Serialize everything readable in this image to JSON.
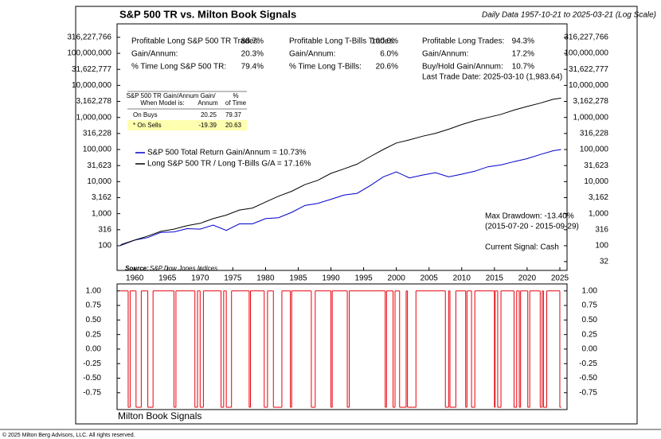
{
  "chart_data": [
    {
      "type": "line",
      "log": true,
      "title": "S&P 500 TR vs. Milton Book Signals",
      "subtitle": "Daily Data 1957-10-21 to 2025-03-21 (Log Scale)",
      "x": [
        1957.8,
        1958,
        1960,
        1962,
        1964,
        1966,
        1968,
        1970,
        1972,
        1974,
        1976,
        1978,
        1980,
        1982,
        1984,
        1986,
        1988,
        1990,
        1992,
        1994,
        1996,
        1998,
        2000,
        2002,
        2004,
        2006,
        2008,
        2010,
        2012,
        2014,
        2016,
        2018,
        2020,
        2022,
        2024,
        2025.2
      ],
      "xlim": [
        1957.3,
        2026.1
      ],
      "xticks": [
        1960,
        1965,
        1970,
        1975,
        1980,
        1985,
        1990,
        1995,
        2000,
        2005,
        2010,
        2015,
        2020,
        2025
      ],
      "ylim": [
        17,
        830000000
      ],
      "yticks": [
        100,
        316,
        {
          "value": 1000,
          "label": "1,000"
        },
        {
          "value": 3162,
          "label": "3,162"
        },
        {
          "value": 10000,
          "label": "10,000"
        },
        {
          "value": 31623,
          "label": "31,623"
        },
        {
          "value": 100000,
          "label": "100,000"
        },
        {
          "value": 316228,
          "label": "316,228"
        },
        {
          "value": 1000000,
          "label": "1,000,000"
        },
        {
          "value": 3162278,
          "label": "3,162,278"
        },
        {
          "value": 10000000,
          "label": "10,000,000"
        },
        {
          "value": 31622777,
          "label": "31,622,777"
        },
        {
          "value": 100000000,
          "label": "100,000,000"
        },
        {
          "value": 316227766,
          "label": "316,227,766"
        }
      ],
      "y2lim": [
        17,
        830000000
      ],
      "y2ticks": [
        32,
        100,
        316,
        {
          "value": 1000,
          "label": "1,000"
        },
        {
          "value": 3162,
          "label": "3,162"
        },
        {
          "value": 10000,
          "label": "10,000"
        },
        {
          "value": 31623,
          "label": "31,623"
        },
        {
          "value": 100000,
          "label": "100,000"
        },
        {
          "value": 316228,
          "label": "316,228"
        },
        {
          "value": 1000000,
          "label": "1,000,000"
        },
        {
          "value": 3162278,
          "label": "3,162,278"
        },
        {
          "value": 10000000,
          "label": "10,000,000"
        },
        {
          "value": 31622777,
          "label": "31,622,777"
        },
        {
          "value": 100000000,
          "label": "100,000,000"
        },
        {
          "value": 316227766,
          "label": "316,227,766"
        }
      ],
      "series": [
        {
          "name": "S&P 500 Total Return Gain/Annum = 10.73%",
          "color": "#0000cc",
          "values": [
            100,
            105,
            150,
            180,
            260,
            270,
            340,
            330,
            440,
            300,
            480,
            480,
            700,
            750,
            1100,
            1800,
            2100,
            2800,
            3800,
            4300,
            7500,
            14000,
            20000,
            13000,
            16000,
            19000,
            14000,
            17000,
            21000,
            29000,
            33000,
            42000,
            52000,
            70000,
            92000,
            100000
          ]
        },
        {
          "name": "Long S&P 500 TR / Long T-Bills  G/A = 17.16%",
          "color": "#000000",
          "values": [
            100,
            110,
            150,
            200,
            280,
            330,
            420,
            500,
            700,
            900,
            1300,
            1500,
            2300,
            3500,
            5000,
            8000,
            11000,
            18000,
            25000,
            35000,
            60000,
            100000,
            160000,
            200000,
            260000,
            320000,
            430000,
            600000,
            800000,
            1000000,
            1250000,
            1700000,
            2200000,
            2800000,
            3700000,
            4000000
          ]
        }
      ],
      "legend": "upper left",
      "stats": [
        [
          [
            "Profitable Long S&P 500 TR Trades:",
            "88.7%"
          ],
          [
            "Gain/Annum:",
            "20.3%"
          ],
          [
            "% Time Long S&P 500 TR:",
            "79.4%"
          ]
        ],
        [
          [
            "Profitable Long T-Bills Trades:",
            "100.0%"
          ],
          [
            "Gain/Annum:",
            "6.0%"
          ],
          [
            "% Time Long T-Bills:",
            "20.6%"
          ]
        ],
        [
          [
            "Profitable Long Trades:",
            "94.3%"
          ],
          [
            "Gain/Annum:",
            "17.2%"
          ],
          [
            "Buy/Hold Gain/Annum:",
            "10.7%"
          ]
        ]
      ],
      "last_trade": "Last Trade Date: 2025-03-10 (1,983.64)",
      "table": {
        "header": [
          [
            "S&P 500 TR Gain/Annum",
            "When Model is:"
          ],
          [
            "Gain/",
            "Annum"
          ],
          [
            "%",
            "of Time"
          ]
        ],
        "rows": [
          [
            "On Buys",
            "20.25",
            "79.37"
          ],
          [
            "* On Sells",
            "-19.39",
            "20.63"
          ]
        ]
      },
      "annotations": [
        "Max Drawdown: -13.40%",
        "(2015-07-20 - 2015-09-29)",
        "Current Signal: Cash"
      ],
      "source_label": "Source:",
      "source": "S&P Dow Jones Indices"
    },
    {
      "type": "step",
      "title": "Milton Book Signals",
      "color": "#e8000b",
      "x": [
        1957.8,
        1959.0,
        1959.3,
        1960.2,
        1961.0,
        1962.0,
        1962.8,
        1966.0,
        1966.3,
        1969.2,
        1969.6,
        1970.0,
        1970.5,
        1973.2,
        1973.6,
        1974.0,
        1974.8,
        1977.5,
        1977.7,
        1979.8,
        1980.3,
        1981.2,
        1982.5,
        1983.8,
        1984.0,
        1987.0,
        1987.6,
        1990.0,
        1990.2,
        1992.5,
        1992.8,
        1998.3,
        1998.5,
        1999.5,
        1999.8,
        2000.5,
        2001.5,
        2001.7,
        2003.0,
        2007.5,
        2008.0,
        2008.2,
        2009.1,
        2010.6,
        2010.8,
        2011.5,
        2012.0,
        2015.0,
        2015.1,
        2015.5,
        2016.0,
        2018.0,
        2018.4,
        2018.8,
        2019.0,
        2020.1,
        2020.4,
        2022.0,
        2022.3,
        2022.5,
        2023.0,
        2025.0
      ],
      "values": [
        1,
        -1,
        1,
        -1,
        1,
        -1,
        1,
        -1,
        1,
        -1,
        1,
        -1,
        1,
        -1,
        1,
        -1,
        1,
        -1,
        1,
        -1,
        1,
        -1,
        1,
        -1,
        1,
        -1,
        1,
        -1,
        1,
        -1,
        1,
        -1,
        1,
        -1,
        1,
        -1,
        1,
        -1,
        1,
        -1,
        1,
        -1,
        1,
        -1,
        1,
        -1,
        1,
        -1,
        1,
        -1,
        1,
        -1,
        1,
        -1,
        1,
        -1,
        1,
        -1,
        1,
        -1,
        1,
        -1
      ],
      "xlim": [
        1957.3,
        2026.1
      ],
      "ylim": [
        -1.04,
        1.12
      ],
      "yticks": [
        {
          "value": 1,
          "label": "1.00"
        },
        {
          "value": 0.75,
          "label": "0.75"
        },
        {
          "value": 0.5,
          "label": "0.50"
        },
        {
          "value": 0.25,
          "label": "0.25"
        },
        {
          "value": 0,
          "label": "0.00"
        },
        {
          "value": -0.25,
          "label": "-0.25"
        },
        {
          "value": -0.5,
          "label": "-0.50"
        },
        {
          "value": -0.75,
          "label": "-0.75"
        }
      ]
    }
  ],
  "footer": "© 2025 Milton Berg Advisors, LLC. All rights reserved."
}
